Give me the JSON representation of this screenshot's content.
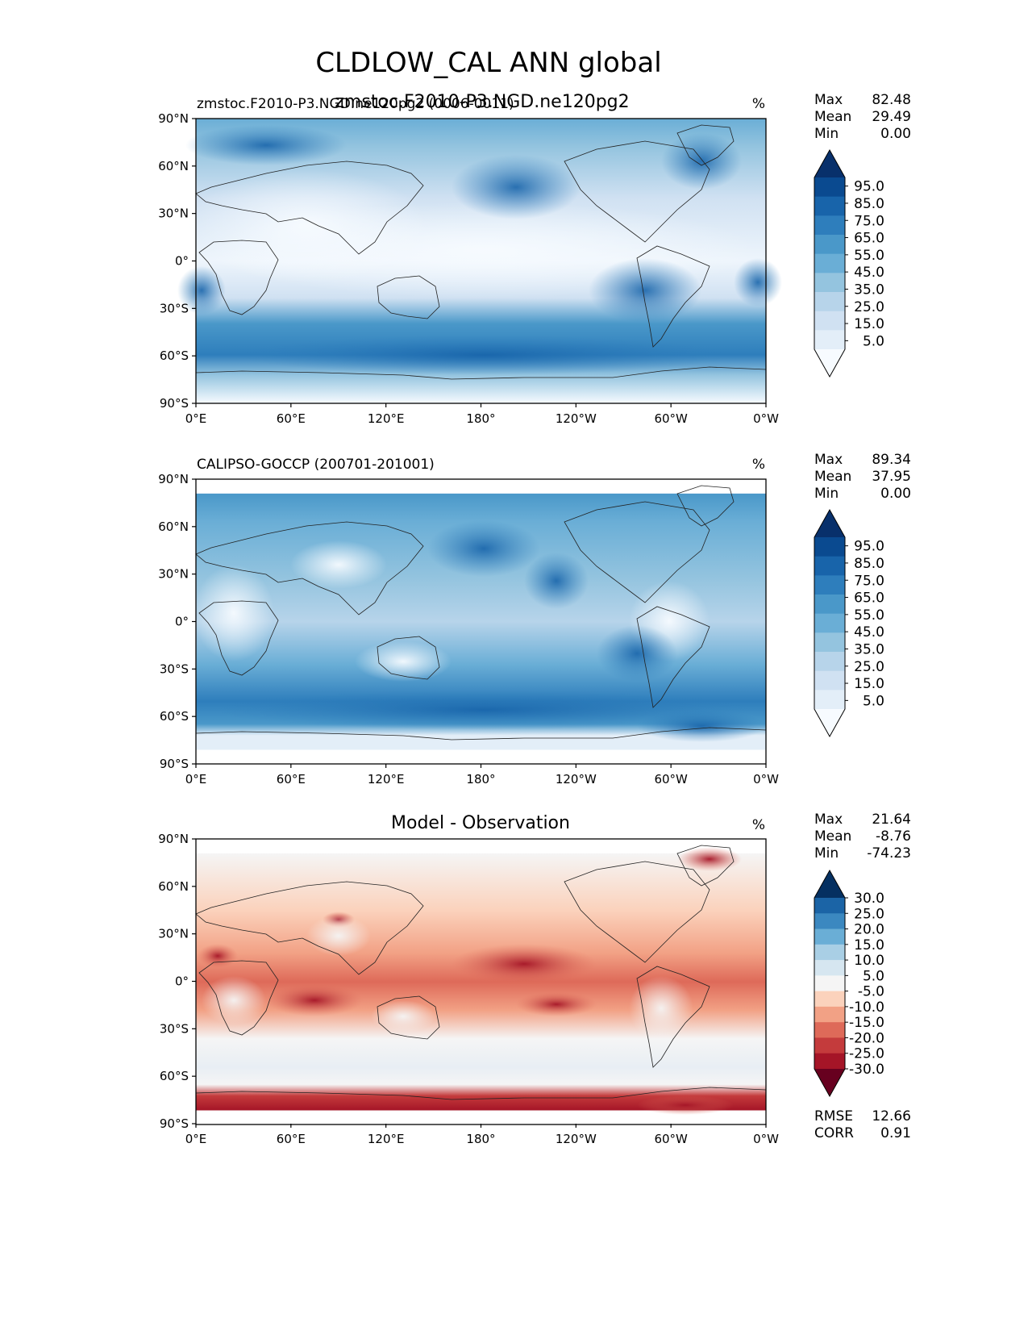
{
  "figure": {
    "title": "CLDLOW_CAL ANN global"
  },
  "chart_data": [
    {
      "type": "heatmap",
      "panel": "test",
      "center_title": "zmstoc.F2010-P3.NGD.ne120pg2",
      "left_title": "zmstoc.F2010-P3.NGD.ne120pg2 (0006-0011)",
      "units": "%",
      "stats": {
        "max_label": "Max",
        "max": "82.48",
        "mean_label": "Mean",
        "mean": "29.49",
        "min_label": "Min",
        "min": "0.00"
      },
      "colorbar": {
        "levels": [
          0,
          5,
          10,
          15,
          20,
          25,
          30,
          35,
          40,
          45,
          50,
          55,
          60,
          65,
          70,
          75,
          80,
          85,
          90,
          95,
          100
        ],
        "tick_labels": [
          "95.0",
          "85.0",
          "75.0",
          "65.0",
          "55.0",
          "45.0",
          "35.0",
          "25.0",
          "15.0",
          "5.0"
        ],
        "colors": [
          "#f7fbff",
          "#e3eef8",
          "#d0e1f2",
          "#b7d4ea",
          "#94c4df",
          "#6aaed6",
          "#4a98c9",
          "#2e7ebc",
          "#1864aa",
          "#0a4a90",
          "#08306b"
        ],
        "extend": "both"
      },
      "xlim": [
        0,
        360
      ],
      "ylim": [
        -90,
        90
      ],
      "x_ticks": [
        "0°E",
        "60°E",
        "120°E",
        "180°",
        "120°W",
        "60°W",
        "0°W"
      ],
      "y_ticks": [
        "90°N",
        "60°N",
        "30°N",
        "0°",
        "30°S",
        "60°S",
        "90°S"
      ]
    },
    {
      "type": "heatmap",
      "panel": "reference",
      "center_title": "",
      "left_title": "CALIPSO-GOCCP (200701-201001)",
      "units": "%",
      "stats": {
        "max_label": "Max",
        "max": "89.34",
        "mean_label": "Mean",
        "mean": "37.95",
        "min_label": "Min",
        "min": "0.00"
      },
      "colorbar": {
        "levels": [
          0,
          5,
          10,
          15,
          20,
          25,
          30,
          35,
          40,
          45,
          50,
          55,
          60,
          65,
          70,
          75,
          80,
          85,
          90,
          95,
          100
        ],
        "tick_labels": [
          "95.0",
          "85.0",
          "75.0",
          "65.0",
          "55.0",
          "45.0",
          "35.0",
          "25.0",
          "15.0",
          "5.0"
        ],
        "colors": [
          "#f7fbff",
          "#e3eef8",
          "#d0e1f2",
          "#b7d4ea",
          "#94c4df",
          "#6aaed6",
          "#4a98c9",
          "#2e7ebc",
          "#1864aa",
          "#0a4a90",
          "#08306b"
        ],
        "extend": "both"
      },
      "xlim": [
        0,
        360
      ],
      "ylim": [
        -90,
        90
      ],
      "x_ticks": [
        "0°E",
        "60°E",
        "120°E",
        "180°",
        "120°W",
        "60°W",
        "0°W"
      ],
      "y_ticks": [
        "90°N",
        "60°N",
        "30°N",
        "0°",
        "30°S",
        "60°S",
        "90°S"
      ]
    },
    {
      "type": "heatmap",
      "panel": "difference",
      "center_title": "Model - Observation",
      "left_title": "",
      "units": "%",
      "stats": {
        "max_label": "Max",
        "max": "21.64",
        "mean_label": "Mean",
        "mean": "-8.76",
        "min_label": "Min",
        "min": "-74.23"
      },
      "extra_stats": {
        "rmse_label": "RMSE",
        "rmse": "12.66",
        "corr_label": "CORR",
        "corr": "0.91"
      },
      "colorbar": {
        "levels": [
          -30,
          -25,
          -20,
          -15,
          -10,
          -5,
          5,
          10,
          15,
          20,
          25,
          30
        ],
        "tick_labels": [
          "30.0",
          "25.0",
          "20.0",
          "15.0",
          "10.0",
          "5.0",
          "-5.0",
          "-10.0",
          "-15.0",
          "-20.0",
          "-25.0",
          "-30.0"
        ],
        "colors": [
          "#67001f",
          "#a51527",
          "#c43b3c",
          "#de6a59",
          "#f2a185",
          "#fbd2bc",
          "#f5f5f5",
          "#d6e6f0",
          "#a9cfe5",
          "#6aaed6",
          "#3b88c0",
          "#1b64a6",
          "#053061"
        ],
        "extend": "both"
      },
      "xlim": [
        0,
        360
      ],
      "ylim": [
        -90,
        90
      ],
      "x_ticks": [
        "0°E",
        "60°E",
        "120°E",
        "180°",
        "120°W",
        "60°W",
        "0°W"
      ],
      "y_ticks": [
        "90°N",
        "60°N",
        "30°N",
        "0°",
        "30°S",
        "60°S",
        "90°S"
      ]
    }
  ]
}
